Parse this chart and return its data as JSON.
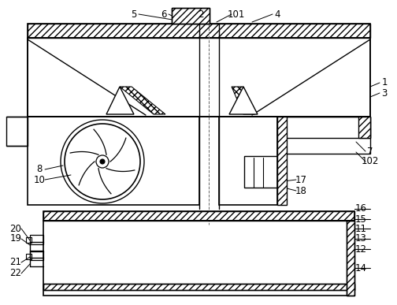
{
  "background": "#ffffff",
  "line_color": "#000000",
  "line_width": 1.0,
  "labels_top": [
    [
      "5",
      168,
      22
    ],
    [
      "6",
      208,
      22
    ],
    [
      "2",
      258,
      22
    ],
    [
      "101",
      300,
      22
    ],
    [
      "4",
      352,
      22
    ]
  ],
  "labels_right": [
    [
      "1",
      488,
      105
    ],
    [
      "3",
      488,
      118
    ]
  ],
  "labels_mid_right": [
    [
      "7",
      468,
      193
    ],
    [
      "102",
      468,
      206
    ],
    [
      "17",
      378,
      228
    ],
    [
      "18",
      378,
      242
    ]
  ],
  "labels_bot_right": [
    [
      "16",
      458,
      265
    ],
    [
      "15",
      458,
      277
    ],
    [
      "11",
      458,
      289
    ],
    [
      "13",
      458,
      302
    ],
    [
      "12",
      458,
      315
    ],
    [
      "14",
      458,
      340
    ]
  ],
  "labels_left": [
    [
      "8",
      52,
      218
    ],
    [
      "10",
      52,
      232
    ]
  ],
  "labels_bot_left": [
    [
      "20",
      22,
      290
    ],
    [
      "19",
      22,
      303
    ],
    [
      "21",
      22,
      333
    ],
    [
      "22",
      22,
      347
    ]
  ]
}
